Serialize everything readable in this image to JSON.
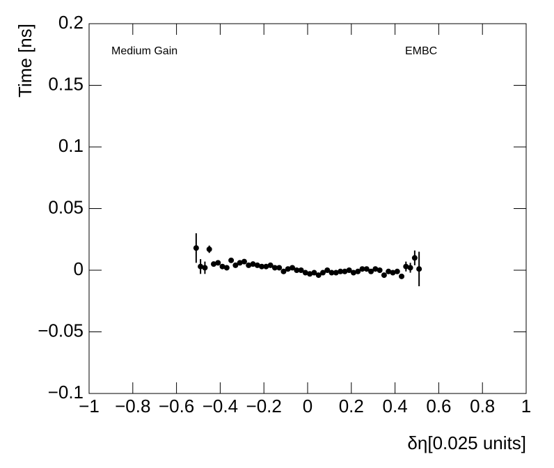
{
  "chart_data": {
    "type": "scatter",
    "x_label": "δη[0.025 units]",
    "y_label": "Time [ns]",
    "annotations": [
      "Medium Gain",
      "EMBC"
    ],
    "color": "#000000",
    "xlim": [
      -1,
      1
    ],
    "ylim": [
      -0.1,
      0.2
    ],
    "xticks": [
      {
        "value": -1,
        "label": "−1"
      },
      {
        "value": -0.8,
        "label": "−0.8"
      },
      {
        "value": -0.6,
        "label": "−0.6"
      },
      {
        "value": -0.4,
        "label": "−0.4"
      },
      {
        "value": -0.2,
        "label": "−0.2"
      },
      0,
      0.2,
      0.4,
      0.6,
      0.8,
      1
    ],
    "yticks": [
      {
        "value": -0.1,
        "label": "−0.1"
      },
      {
        "value": -0.05,
        "label": "−0.05"
      },
      0,
      0.05,
      0.1,
      0.15,
      0.2
    ],
    "x": [
      -0.51,
      -0.49,
      -0.47,
      -0.45,
      -0.43,
      -0.41,
      -0.39,
      -0.37,
      -0.35,
      -0.33,
      -0.31,
      -0.29,
      -0.27,
      -0.25,
      -0.23,
      -0.21,
      -0.19,
      -0.17,
      -0.15,
      -0.13,
      -0.11,
      -0.09,
      -0.07,
      -0.05,
      -0.03,
      -0.01,
      0.01,
      0.03,
      0.05,
      0.07,
      0.09,
      0.11,
      0.13,
      0.15,
      0.17,
      0.19,
      0.21,
      0.23,
      0.25,
      0.27,
      0.29,
      0.31,
      0.33,
      0.35,
      0.37,
      0.39,
      0.41,
      0.43,
      0.45,
      0.47,
      0.49,
      0.51
    ],
    "values": [
      0.018,
      0.003,
      0.002,
      0.017,
      0.005,
      0.006,
      0.003,
      0.002,
      0.008,
      0.004,
      0.006,
      0.007,
      0.004,
      0.005,
      0.004,
      0.003,
      0.003,
      0.004,
      0.002,
      0.002,
      -0.001,
      0.001,
      0.002,
      0.0,
      0.0,
      -0.002,
      -0.003,
      -0.002,
      -0.004,
      -0.002,
      0.0,
      -0.002,
      -0.002,
      -0.001,
      -0.001,
      0.0,
      -0.002,
      -0.001,
      0.001,
      0.001,
      -0.001,
      0.001,
      0.0,
      -0.004,
      -0.001,
      -0.002,
      -0.001,
      -0.005,
      0.003,
      0.002,
      0.01,
      0.001
    ],
    "errors": [
      0.012,
      0.006,
      0.005,
      0.003,
      0.002,
      0.002,
      0.001,
      0.001,
      0.001,
      0.001,
      0.001,
      0.001,
      0.001,
      0.001,
      0.001,
      0.001,
      0.001,
      0.001,
      0.001,
      0.001,
      0.001,
      0.001,
      0.001,
      0.001,
      0.001,
      0.001,
      0.001,
      0.001,
      0.001,
      0.001,
      0.001,
      0.001,
      0.001,
      0.001,
      0.001,
      0.001,
      0.001,
      0.001,
      0.001,
      0.001,
      0.001,
      0.001,
      0.001,
      0.001,
      0.001,
      0.001,
      0.001,
      0.002,
      0.004,
      0.004,
      0.006,
      0.014
    ]
  }
}
